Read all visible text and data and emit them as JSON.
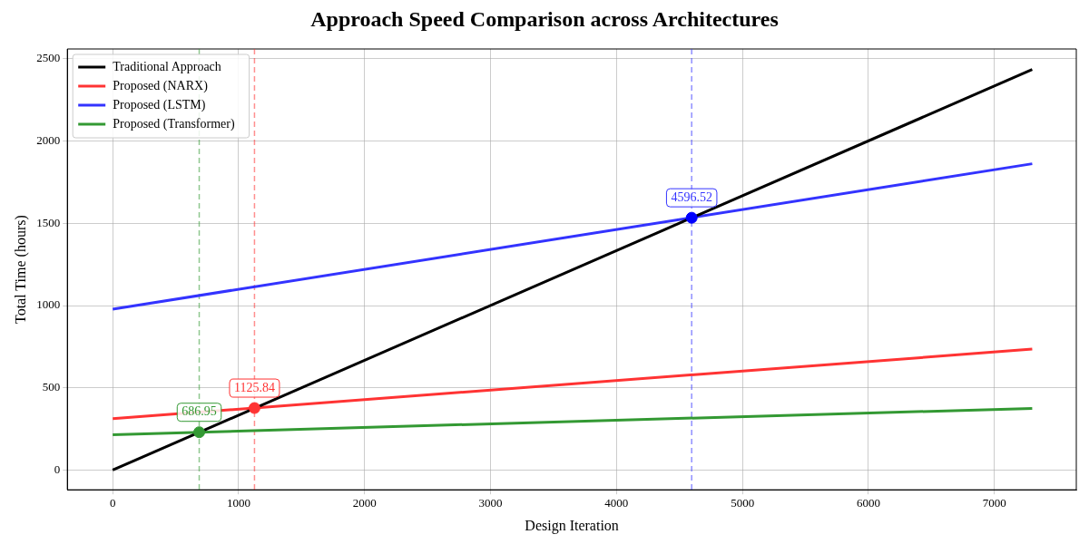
{
  "chart_data": {
    "type": "line",
    "title": "Approach Speed Comparison across Architectures",
    "xlabel": "Design Iteration",
    "ylabel": "Total Time (hours)",
    "xlim": [
      -360,
      7650
    ],
    "xticks": [
      0,
      1000,
      2000,
      3000,
      4000,
      5000,
      6000,
      7000
    ],
    "ylim": [
      -120,
      2560
    ],
    "yticks": [
      0,
      500,
      1000,
      1500,
      2000,
      2500
    ],
    "grid": true,
    "legend": "top left",
    "marker": "none",
    "line_style": "solid",
    "series": [
      {
        "name": "Traditional Approach",
        "color": "#000000",
        "x": [
          0,
          7300
        ],
        "values": [
          0,
          2435
        ]
      },
      {
        "name": "Proposed (NARX)",
        "color": "#ff3333",
        "x": [
          0,
          7300
        ],
        "values": [
          312,
          735
        ]
      },
      {
        "name": "Proposed (LSTM)",
        "color": "#3333ff",
        "x": [
          0,
          7300
        ],
        "values": [
          978,
          1862
        ]
      },
      {
        "name": "Proposed (Transformer)",
        "color": "#339933",
        "x": [
          0,
          7300
        ],
        "values": [
          215,
          375
        ]
      },
      {
        "type": "scatter",
        "marker": "circle",
        "x": [
          686.95,
          1125.84,
          4596.52
        ],
        "values": [
          230,
          377,
          1534
        ],
        "colors": [
          "#339933",
          "#ff3333",
          "#0000ff"
        ]
      }
    ],
    "ref_lines": [
      {
        "axis": "x",
        "value": 686.95,
        "color": "#339933",
        "line_style": "dashed"
      },
      {
        "axis": "x",
        "value": 1125.84,
        "color": "#ff3333",
        "line_style": "dashed"
      },
      {
        "axis": "x",
        "value": 4596.52,
        "color": "#3333ff",
        "line_style": "dashed"
      }
    ],
    "annotations": [
      {
        "text": "686.95",
        "x": 686.95,
        "y": 230
      },
      {
        "text": "1125.84",
        "x": 1125.84,
        "y": 377
      },
      {
        "text": "4596.52",
        "x": 4596.52,
        "y": 1534
      }
    ]
  }
}
